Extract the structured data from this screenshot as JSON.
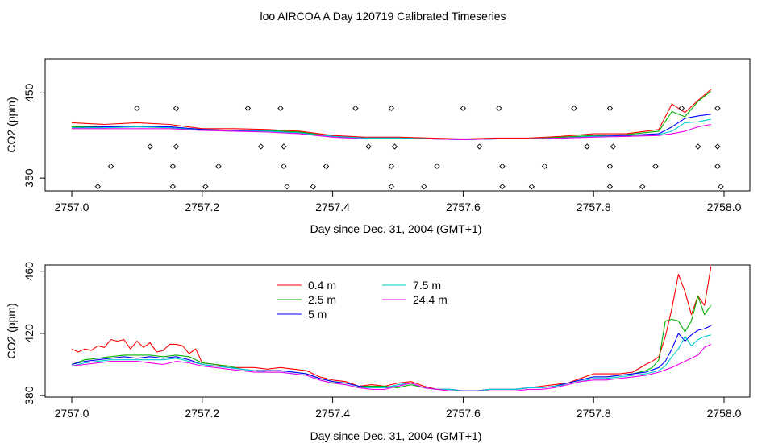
{
  "title": "loo AIRCOA A  Day 120719  Calibrated Timeseries",
  "chart_data": [
    {
      "type": "line",
      "panel": "top",
      "xlabel": "Day since Dec. 31, 2004 (GMT+1)",
      "ylabel": "CO2 (ppm)",
      "xlim": [
        2757.0,
        2758.0
      ],
      "ylim": [
        335,
        490
      ],
      "x_ticks": [
        "2757.0",
        "2757.2",
        "2757.4",
        "2757.6",
        "2757.8",
        "2758.0"
      ],
      "y_ticks": [
        "350",
        "450"
      ],
      "series": [
        {
          "name": "0.4 m",
          "color": "#ff0000",
          "x": [
            2757.0,
            2757.05,
            2757.1,
            2757.15,
            2757.2,
            2757.25,
            2757.3,
            2757.35,
            2757.4,
            2757.45,
            2757.5,
            2757.55,
            2757.6,
            2757.65,
            2757.7,
            2757.75,
            2757.8,
            2757.85,
            2757.9,
            2757.92,
            2757.94,
            2757.96,
            2757.98
          ],
          "y": [
            415,
            413,
            415,
            413,
            408,
            408,
            407,
            405,
            400,
            398,
            398,
            397,
            396,
            397,
            397,
            399,
            402,
            402,
            407,
            437,
            427,
            441,
            454
          ]
        },
        {
          "name": "2.5 m",
          "color": "#00b000",
          "x": [
            2757.0,
            2757.05,
            2757.1,
            2757.15,
            2757.2,
            2757.25,
            2757.3,
            2757.35,
            2757.4,
            2757.45,
            2757.5,
            2757.55,
            2757.6,
            2757.65,
            2757.7,
            2757.75,
            2757.8,
            2757.85,
            2757.9,
            2757.92,
            2757.94,
            2757.96,
            2757.98
          ],
          "y": [
            410,
            410,
            411,
            410,
            407,
            406,
            406,
            404,
            399,
            397,
            397,
            396,
            395,
            396,
            396,
            398,
            400,
            401,
            405,
            428,
            422,
            440,
            452
          ]
        },
        {
          "name": "5 m",
          "color": "#0000ff",
          "x": [
            2757.0,
            2757.05,
            2757.1,
            2757.15,
            2757.2,
            2757.25,
            2757.3,
            2757.35,
            2757.4,
            2757.45,
            2757.5,
            2757.55,
            2757.6,
            2757.65,
            2757.7,
            2757.75,
            2757.8,
            2757.85,
            2757.9,
            2757.92,
            2757.94,
            2757.96,
            2757.98
          ],
          "y": [
            409,
            410,
            410,
            410,
            407,
            406,
            405,
            403,
            399,
            397,
            397,
            396,
            395,
            396,
            396,
            397,
            399,
            400,
            402,
            410,
            420,
            423,
            425
          ]
        },
        {
          "name": "7.5 m",
          "color": "#00cccc",
          "x": [
            2757.0,
            2757.05,
            2757.1,
            2757.15,
            2757.2,
            2757.25,
            2757.3,
            2757.35,
            2757.4,
            2757.45,
            2757.5,
            2757.55,
            2757.6,
            2757.65,
            2757.7,
            2757.75,
            2757.8,
            2757.85,
            2757.9,
            2757.92,
            2757.94,
            2757.96,
            2757.98
          ],
          "y": [
            409,
            409,
            410,
            409,
            406,
            405,
            405,
            403,
            399,
            397,
            397,
            396,
            395,
            396,
            396,
            397,
            399,
            399,
            401,
            405,
            415,
            416,
            419
          ]
        },
        {
          "name": "24.4 m",
          "color": "#ee00ee",
          "x": [
            2757.0,
            2757.05,
            2757.1,
            2757.15,
            2757.2,
            2757.25,
            2757.3,
            2757.35,
            2757.4,
            2757.45,
            2757.5,
            2757.55,
            2757.6,
            2757.65,
            2757.7,
            2757.75,
            2757.8,
            2757.85,
            2757.9,
            2757.92,
            2757.94,
            2757.96,
            2757.98
          ],
          "y": [
            408,
            408,
            408,
            408,
            406,
            405,
            404,
            402,
            398,
            396,
            396,
            396,
            395,
            396,
            396,
            397,
            398,
            399,
            400,
            402,
            405,
            410,
            413
          ]
        }
      ],
      "markers": {
        "shape": "diamond-open",
        "color": "#000000",
        "x": [
          2757.04,
          2757.06,
          2757.1,
          2757.12,
          2757.155,
          2757.155,
          2757.16,
          2757.16,
          2757.205,
          2757.225,
          2757.27,
          2757.29,
          2757.32,
          2757.325,
          2757.325,
          2757.33,
          2757.37,
          2757.39,
          2757.435,
          2757.455,
          2757.49,
          2757.49,
          2757.49,
          2757.495,
          2757.54,
          2757.56,
          2757.6,
          2757.625,
          2757.655,
          2757.66,
          2757.66,
          2757.705,
          2757.725,
          2757.77,
          2757.79,
          2757.825,
          2757.825,
          2757.825,
          2757.83,
          2757.875,
          2757.895,
          2757.935,
          2757.96,
          2757.99,
          2757.99,
          2757.99,
          2757.995
        ],
        "y": [
          340,
          364,
          432,
          387,
          340,
          364,
          432,
          387,
          340,
          364,
          432,
          387,
          432,
          387,
          364,
          340,
          340,
          364,
          432,
          387,
          340,
          364,
          432,
          387,
          340,
          364,
          432,
          387,
          432,
          364,
          340,
          340,
          364,
          432,
          387,
          340,
          364,
          432,
          387,
          340,
          364,
          432,
          387,
          432,
          364,
          387,
          340
        ]
      }
    },
    {
      "type": "line",
      "panel": "bottom",
      "xlabel": "Day since Dec. 31, 2004 (GMT+1)",
      "ylabel": "CO2 (ppm)",
      "xlim": [
        2757.0,
        2758.0
      ],
      "ylim": [
        379,
        464
      ],
      "x_ticks": [
        "2757.0",
        "2757.2",
        "2757.4",
        "2757.6",
        "2757.8",
        "2758.0"
      ],
      "y_ticks": [
        "380",
        "420",
        "460"
      ],
      "legend": "top-center",
      "series": [
        {
          "name": "0.4 m",
          "color": "#ff0000",
          "x": [
            2757.0,
            2757.01,
            2757.02,
            2757.03,
            2757.04,
            2757.05,
            2757.06,
            2757.07,
            2757.08,
            2757.09,
            2757.1,
            2757.11,
            2757.12,
            2757.13,
            2757.14,
            2757.15,
            2757.16,
            2757.17,
            2757.18,
            2757.19,
            2757.2,
            2757.22,
            2757.24,
            2757.26,
            2757.28,
            2757.3,
            2757.32,
            2757.34,
            2757.36,
            2757.38,
            2757.4,
            2757.42,
            2757.44,
            2757.46,
            2757.48,
            2757.5,
            2757.52,
            2757.54,
            2757.56,
            2757.58,
            2757.6,
            2757.62,
            2757.64,
            2757.66,
            2757.68,
            2757.7,
            2757.72,
            2757.74,
            2757.76,
            2757.78,
            2757.8,
            2757.82,
            2757.84,
            2757.86,
            2757.88,
            2757.89,
            2757.9,
            2757.91,
            2757.92,
            2757.93,
            2757.94,
            2757.95,
            2757.96,
            2757.97,
            2757.98
          ],
          "y": [
            410,
            408,
            410,
            409,
            412,
            411,
            416,
            415,
            416,
            410,
            415,
            411,
            414,
            408,
            409,
            413,
            413,
            412,
            407,
            410,
            401,
            400,
            398,
            398,
            398,
            397,
            398,
            397,
            396,
            392,
            390,
            389,
            386,
            387,
            386,
            388,
            389,
            386,
            384,
            384,
            383,
            383,
            384,
            384,
            384,
            385,
            386,
            387,
            388,
            391,
            394,
            394,
            394,
            395,
            400,
            402,
            405,
            418,
            436,
            458,
            447,
            432,
            444,
            438,
            463
          ]
        },
        {
          "name": "2.5 m",
          "color": "#00b000",
          "x": [
            2757.0,
            2757.02,
            2757.04,
            2757.06,
            2757.08,
            2757.1,
            2757.12,
            2757.14,
            2757.16,
            2757.18,
            2757.2,
            2757.22,
            2757.24,
            2757.26,
            2757.28,
            2757.3,
            2757.32,
            2757.34,
            2757.36,
            2757.38,
            2757.4,
            2757.42,
            2757.44,
            2757.46,
            2757.48,
            2757.5,
            2757.52,
            2757.54,
            2757.56,
            2757.58,
            2757.6,
            2757.62,
            2757.64,
            2757.66,
            2757.68,
            2757.7,
            2757.72,
            2757.74,
            2757.76,
            2757.78,
            2757.8,
            2757.82,
            2757.84,
            2757.86,
            2757.88,
            2757.89,
            2757.9,
            2757.91,
            2757.92,
            2757.93,
            2757.94,
            2757.95,
            2757.96,
            2757.97,
            2757.98
          ],
          "y": [
            400,
            403,
            404,
            405,
            406,
            406,
            406,
            405,
            406,
            405,
            401,
            400,
            399,
            397,
            396,
            396,
            396,
            395,
            394,
            391,
            389,
            388,
            386,
            386,
            386,
            385,
            387,
            385,
            384,
            384,
            383,
            383,
            384,
            384,
            384,
            385,
            385,
            386,
            388,
            390,
            392,
            392,
            393,
            394,
            396,
            398,
            403,
            428,
            429,
            428,
            421,
            428,
            444,
            432,
            438
          ]
        },
        {
          "name": "5 m",
          "color": "#0000ff",
          "x": [
            2757.0,
            2757.02,
            2757.04,
            2757.06,
            2757.08,
            2757.1,
            2757.12,
            2757.14,
            2757.16,
            2757.18,
            2757.2,
            2757.22,
            2757.24,
            2757.26,
            2757.28,
            2757.3,
            2757.32,
            2757.34,
            2757.36,
            2757.38,
            2757.4,
            2757.42,
            2757.44,
            2757.46,
            2757.48,
            2757.5,
            2757.52,
            2757.54,
            2757.56,
            2757.58,
            2757.6,
            2757.62,
            2757.64,
            2757.66,
            2757.68,
            2757.7,
            2757.72,
            2757.74,
            2757.76,
            2757.78,
            2757.8,
            2757.82,
            2757.84,
            2757.86,
            2757.88,
            2757.9,
            2757.91,
            2757.92,
            2757.93,
            2757.94,
            2757.95,
            2757.96,
            2757.97,
            2757.98
          ],
          "y": [
            400,
            402,
            403,
            404,
            405,
            404,
            405,
            404,
            405,
            403,
            400,
            399,
            398,
            397,
            396,
            396,
            396,
            395,
            394,
            391,
            389,
            388,
            386,
            385,
            385,
            386,
            388,
            385,
            384,
            384,
            383,
            383,
            384,
            384,
            384,
            385,
            385,
            386,
            388,
            390,
            392,
            392,
            393,
            394,
            395,
            398,
            402,
            410,
            420,
            415,
            419,
            422,
            423,
            425
          ]
        },
        {
          "name": "7.5 m",
          "color": "#00cccc",
          "x": [
            2757.0,
            2757.02,
            2757.04,
            2757.06,
            2757.08,
            2757.1,
            2757.12,
            2757.14,
            2757.16,
            2757.18,
            2757.2,
            2757.22,
            2757.24,
            2757.26,
            2757.28,
            2757.3,
            2757.32,
            2757.34,
            2757.36,
            2757.38,
            2757.4,
            2757.42,
            2757.44,
            2757.46,
            2757.48,
            2757.5,
            2757.52,
            2757.54,
            2757.56,
            2757.58,
            2757.6,
            2757.62,
            2757.64,
            2757.66,
            2757.68,
            2757.7,
            2757.72,
            2757.74,
            2757.76,
            2757.78,
            2757.8,
            2757.82,
            2757.84,
            2757.86,
            2757.88,
            2757.9,
            2757.91,
            2757.92,
            2757.93,
            2757.94,
            2757.95,
            2757.96,
            2757.97,
            2757.98
          ],
          "y": [
            399,
            401,
            402,
            403,
            403,
            403,
            403,
            403,
            404,
            402,
            400,
            399,
            398,
            397,
            396,
            395,
            395,
            394,
            393,
            390,
            388,
            387,
            385,
            385,
            385,
            387,
            388,
            385,
            384,
            384,
            383,
            383,
            384,
            384,
            384,
            385,
            385,
            386,
            387,
            389,
            391,
            391,
            392,
            393,
            394,
            396,
            399,
            405,
            410,
            418,
            412,
            416,
            418,
            419
          ]
        },
        {
          "name": "24.4 m",
          "color": "#ee00ee",
          "x": [
            2757.0,
            2757.02,
            2757.04,
            2757.06,
            2757.08,
            2757.1,
            2757.12,
            2757.14,
            2757.16,
            2757.18,
            2757.2,
            2757.22,
            2757.24,
            2757.26,
            2757.28,
            2757.3,
            2757.32,
            2757.34,
            2757.36,
            2757.38,
            2757.4,
            2757.42,
            2757.44,
            2757.46,
            2757.48,
            2757.5,
            2757.52,
            2757.54,
            2757.56,
            2757.58,
            2757.6,
            2757.62,
            2757.64,
            2757.66,
            2757.68,
            2757.7,
            2757.72,
            2757.74,
            2757.76,
            2757.78,
            2757.8,
            2757.82,
            2757.84,
            2757.86,
            2757.88,
            2757.9,
            2757.92,
            2757.94,
            2757.96,
            2757.97,
            2757.98
          ],
          "y": [
            399,
            400,
            401,
            402,
            402,
            402,
            401,
            400,
            402,
            401,
            399,
            398,
            397,
            396,
            395,
            395,
            395,
            394,
            393,
            390,
            388,
            387,
            385,
            384,
            384,
            386,
            388,
            385,
            384,
            383,
            383,
            383,
            383,
            383,
            383,
            384,
            384,
            385,
            387,
            389,
            390,
            390,
            391,
            392,
            393,
            395,
            398,
            402,
            406,
            411,
            413
          ]
        }
      ]
    }
  ]
}
